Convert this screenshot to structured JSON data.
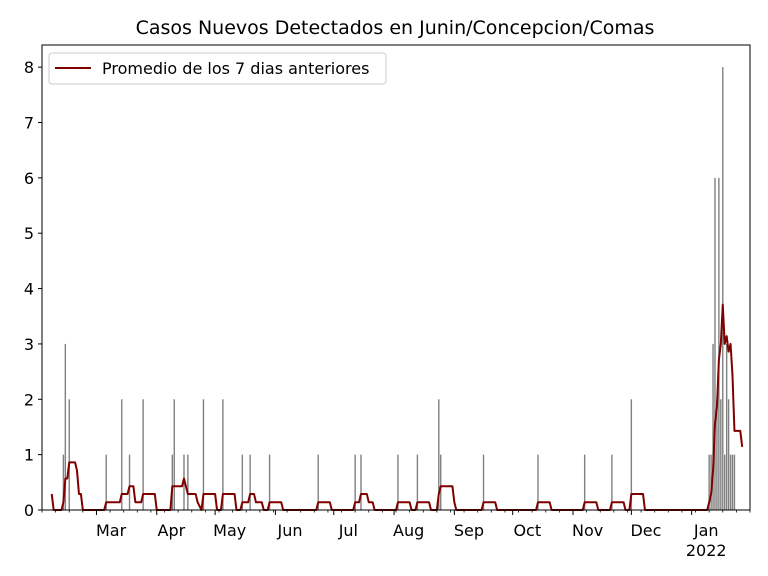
{
  "chart_data": {
    "type": "bar",
    "title": "Casos Nuevos Detectados en Junin/Concepcion/Comas",
    "xlabel": "",
    "ylabel": "",
    "xlim": [
      "2021-02-01",
      "2022-01-31"
    ],
    "ylim": [
      0,
      8.4
    ],
    "y_ticks": [
      "0",
      "1",
      "2",
      "3",
      "4",
      "5",
      "6",
      "7",
      "8"
    ],
    "x_ticks": [
      {
        "date": "2021-03-01",
        "label": "Mar"
      },
      {
        "date": "2021-04-01",
        "label": "Apr"
      },
      {
        "date": "2021-05-01",
        "label": "May"
      },
      {
        "date": "2021-06-01",
        "label": "Jun"
      },
      {
        "date": "2021-07-01",
        "label": "Jul"
      },
      {
        "date": "2021-08-01",
        "label": "Aug"
      },
      {
        "date": "2021-09-01",
        "label": "Sep"
      },
      {
        "date": "2021-10-01",
        "label": "Oct"
      },
      {
        "date": "2021-11-01",
        "label": "Nov"
      },
      {
        "date": "2021-12-01",
        "label": "Dec"
      },
      {
        "date": "2022-01-01",
        "label": "Jan",
        "sublabel": "2022"
      }
    ],
    "grid": false,
    "legend": {
      "position": "top-left",
      "entries": [
        "Promedio de los 7 dias anteriores"
      ]
    },
    "colors": {
      "bars": "#808080",
      "line": "#800000"
    },
    "series": [
      {
        "kind": "bar",
        "points": [
          [
            "2021-02-12",
            1
          ],
          [
            "2021-02-13",
            3
          ],
          [
            "2021-02-15",
            2
          ],
          [
            "2021-03-06",
            1
          ],
          [
            "2021-03-14",
            2
          ],
          [
            "2021-03-18",
            1
          ],
          [
            "2021-03-25",
            2
          ],
          [
            "2021-04-09",
            1
          ],
          [
            "2021-04-10",
            2
          ],
          [
            "2021-04-15",
            1
          ],
          [
            "2021-04-17",
            1
          ],
          [
            "2021-04-25",
            2
          ],
          [
            "2021-05-05",
            2
          ],
          [
            "2021-05-15",
            1
          ],
          [
            "2021-05-19",
            1
          ],
          [
            "2021-05-29",
            1
          ],
          [
            "2021-06-23",
            1
          ],
          [
            "2021-07-12",
            1
          ],
          [
            "2021-07-15",
            1
          ],
          [
            "2021-08-03",
            1
          ],
          [
            "2021-08-13",
            1
          ],
          [
            "2021-08-24",
            2
          ],
          [
            "2021-08-25",
            1
          ],
          [
            "2021-09-16",
            1
          ],
          [
            "2021-10-14",
            1
          ],
          [
            "2021-11-07",
            1
          ],
          [
            "2021-11-21",
            1
          ],
          [
            "2021-12-01",
            2
          ],
          [
            "2022-01-10",
            1
          ],
          [
            "2022-01-11",
            1
          ],
          [
            "2022-01-12",
            3
          ],
          [
            "2022-01-13",
            6
          ],
          [
            "2022-01-14",
            2
          ],
          [
            "2022-01-15",
            6
          ],
          [
            "2022-01-16",
            2
          ],
          [
            "2022-01-17",
            8
          ],
          [
            "2022-01-18",
            1
          ],
          [
            "2022-01-19",
            3
          ],
          [
            "2022-01-20",
            2
          ],
          [
            "2022-01-21",
            1
          ],
          [
            "2022-01-22",
            1
          ],
          [
            "2022-01-23",
            1
          ]
        ]
      },
      {
        "kind": "line",
        "name": "Promedio de los 7 dias anteriores",
        "points": [
          [
            "2021-02-06",
            0.29
          ],
          [
            "2021-02-07",
            0
          ],
          [
            "2021-02-11",
            0
          ],
          [
            "2021-02-12",
            0.14
          ],
          [
            "2021-02-13",
            0.57
          ],
          [
            "2021-02-14",
            0.57
          ],
          [
            "2021-02-15",
            0.86
          ],
          [
            "2021-02-18",
            0.86
          ],
          [
            "2021-02-19",
            0.71
          ],
          [
            "2021-02-20",
            0.29
          ],
          [
            "2021-02-21",
            0.29
          ],
          [
            "2021-02-22",
            0
          ],
          [
            "2021-03-05",
            0
          ],
          [
            "2021-03-06",
            0.14
          ],
          [
            "2021-03-13",
            0.14
          ],
          [
            "2021-03-14",
            0.29
          ],
          [
            "2021-03-17",
            0.29
          ],
          [
            "2021-03-18",
            0.43
          ],
          [
            "2021-03-20",
            0.43
          ],
          [
            "2021-03-21",
            0.14
          ],
          [
            "2021-03-24",
            0.14
          ],
          [
            "2021-03-25",
            0.29
          ],
          [
            "2021-03-31",
            0.29
          ],
          [
            "2021-04-01",
            0
          ],
          [
            "2021-04-08",
            0
          ],
          [
            "2021-04-09",
            0.43
          ],
          [
            "2021-04-14",
            0.43
          ],
          [
            "2021-04-15",
            0.57
          ],
          [
            "2021-04-16",
            0.43
          ],
          [
            "2021-04-17",
            0.29
          ],
          [
            "2021-04-21",
            0.29
          ],
          [
            "2021-04-22",
            0.14
          ],
          [
            "2021-04-24",
            0
          ],
          [
            "2021-04-25",
            0.29
          ],
          [
            "2021-05-01",
            0.29
          ],
          [
            "2021-05-02",
            0
          ],
          [
            "2021-05-04",
            0
          ],
          [
            "2021-05-05",
            0.29
          ],
          [
            "2021-05-11",
            0.29
          ],
          [
            "2021-05-12",
            0
          ],
          [
            "2021-05-14",
            0
          ],
          [
            "2021-05-15",
            0.14
          ],
          [
            "2021-05-18",
            0.14
          ],
          [
            "2021-05-19",
            0.29
          ],
          [
            "2021-05-21",
            0.29
          ],
          [
            "2021-05-22",
            0.14
          ],
          [
            "2021-05-25",
            0.14
          ],
          [
            "2021-05-26",
            0
          ],
          [
            "2021-05-28",
            0
          ],
          [
            "2021-05-29",
            0.14
          ],
          [
            "2021-06-04",
            0.14
          ],
          [
            "2021-06-05",
            0
          ],
          [
            "2021-06-22",
            0
          ],
          [
            "2021-06-23",
            0.14
          ],
          [
            "2021-06-29",
            0.14
          ],
          [
            "2021-06-30",
            0
          ],
          [
            "2021-07-11",
            0
          ],
          [
            "2021-07-12",
            0.14
          ],
          [
            "2021-07-14",
            0.14
          ],
          [
            "2021-07-15",
            0.29
          ],
          [
            "2021-07-18",
            0.29
          ],
          [
            "2021-07-19",
            0.14
          ],
          [
            "2021-07-21",
            0.14
          ],
          [
            "2021-07-22",
            0
          ],
          [
            "2021-08-02",
            0
          ],
          [
            "2021-08-03",
            0.14
          ],
          [
            "2021-08-09",
            0.14
          ],
          [
            "2021-08-10",
            0
          ],
          [
            "2021-08-12",
            0
          ],
          [
            "2021-08-13",
            0.14
          ],
          [
            "2021-08-19",
            0.14
          ],
          [
            "2021-08-20",
            0
          ],
          [
            "2021-08-23",
            0
          ],
          [
            "2021-08-24",
            0.29
          ],
          [
            "2021-08-25",
            0.43
          ],
          [
            "2021-08-31",
            0.43
          ],
          [
            "2021-09-01",
            0.14
          ],
          [
            "2021-09-02",
            0
          ],
          [
            "2021-09-15",
            0
          ],
          [
            "2021-09-16",
            0.14
          ],
          [
            "2021-09-22",
            0.14
          ],
          [
            "2021-09-23",
            0
          ],
          [
            "2021-10-13",
            0
          ],
          [
            "2021-10-14",
            0.14
          ],
          [
            "2021-10-20",
            0.14
          ],
          [
            "2021-10-21",
            0
          ],
          [
            "2021-11-06",
            0
          ],
          [
            "2021-11-07",
            0.14
          ],
          [
            "2021-11-13",
            0.14
          ],
          [
            "2021-11-14",
            0
          ],
          [
            "2021-11-20",
            0
          ],
          [
            "2021-11-21",
            0.14
          ],
          [
            "2021-11-27",
            0.14
          ],
          [
            "2021-11-28",
            0
          ],
          [
            "2021-11-30",
            0
          ],
          [
            "2021-12-01",
            0.29
          ],
          [
            "2021-12-07",
            0.29
          ],
          [
            "2021-12-08",
            0
          ],
          [
            "2022-01-09",
            0
          ],
          [
            "2022-01-10",
            0.14
          ],
          [
            "2022-01-11",
            0.29
          ],
          [
            "2022-01-12",
            0.71
          ],
          [
            "2022-01-13",
            1.57
          ],
          [
            "2022-01-14",
            1.86
          ],
          [
            "2022-01-15",
            2.71
          ],
          [
            "2022-01-16",
            3.0
          ],
          [
            "2022-01-17",
            3.71
          ],
          [
            "2022-01-18",
            3.0
          ],
          [
            "2022-01-19",
            3.14
          ],
          [
            "2022-01-20",
            2.86
          ],
          [
            "2022-01-21",
            3.0
          ],
          [
            "2022-01-22",
            2.43
          ],
          [
            "2022-01-23",
            1.43
          ],
          [
            "2022-01-26",
            1.43
          ],
          [
            "2022-01-27",
            1.14
          ]
        ]
      }
    ]
  }
}
